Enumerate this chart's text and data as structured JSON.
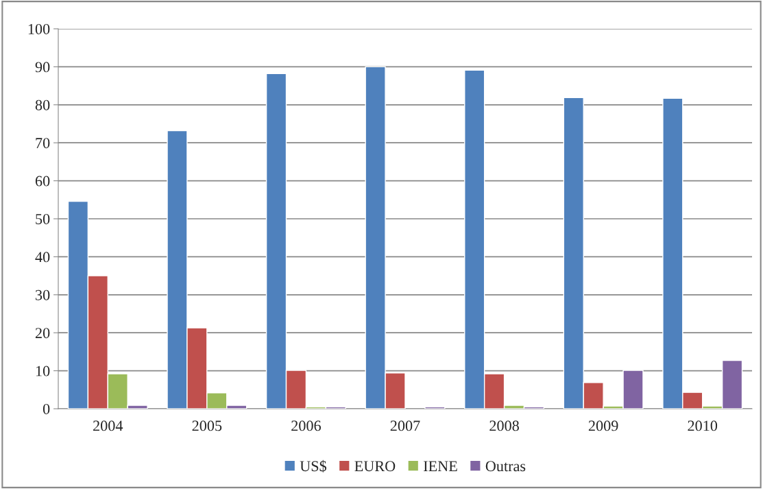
{
  "chart_data": {
    "type": "bar",
    "categories": [
      "2004",
      "2005",
      "2006",
      "2007",
      "2008",
      "2009",
      "2010"
    ],
    "series": [
      {
        "name": "US$",
        "color": "#4f81bd",
        "values": [
          54.6,
          73.2,
          88.2,
          90,
          89.1,
          81.9,
          81.7
        ]
      },
      {
        "name": "EURO",
        "color": "#c0504d",
        "values": [
          35,
          21.3,
          10.1,
          9.4,
          9.2,
          6.9,
          4.3
        ]
      },
      {
        "name": "IENE",
        "color": "#9bbb59",
        "values": [
          9.2,
          4.2,
          0.5,
          null,
          0.9,
          0.7,
          0.7
        ]
      },
      {
        "name": "Outras",
        "color": "#8064a2",
        "values": [
          0.9,
          0.9,
          0.5,
          0.5,
          0.5,
          10.1,
          12.7
        ]
      }
    ],
    "ylim": [
      0,
      100
    ],
    "yticks": [
      0,
      10,
      20,
      30,
      40,
      50,
      60,
      70,
      80,
      90,
      100
    ],
    "grid": "y",
    "legend": "bottom"
  }
}
